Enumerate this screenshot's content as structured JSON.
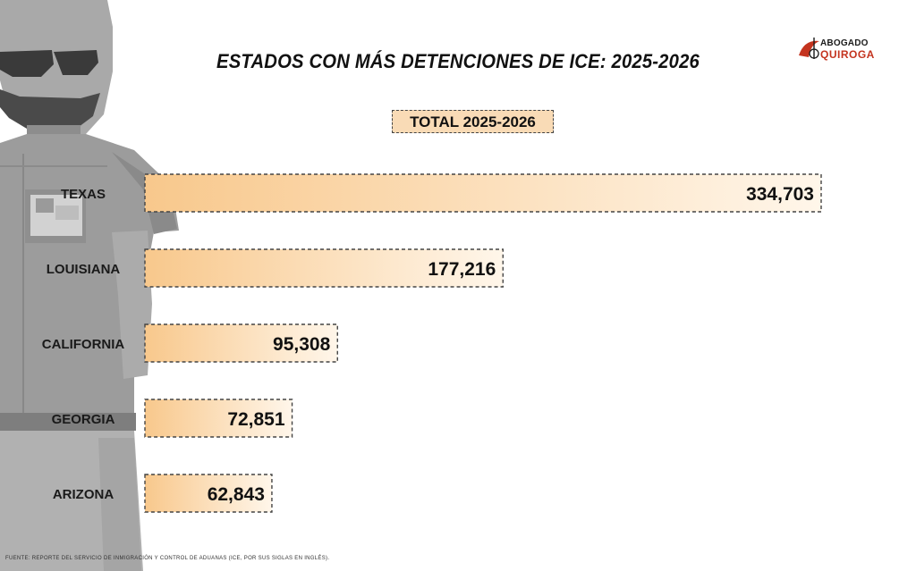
{
  "header": {
    "title": "ESTADOS CON MÁS DETENCIONES DE ICE: 2025-2026",
    "subtitle": "TOTAL 2025-2026"
  },
  "logo": {
    "line1": "ABOGADO",
    "line2": "QUIROGA"
  },
  "source": "FUENTE: REPORTE DEL SERVICIO DE INMIGRACIÓN Y CONTROL DE ADUANAS (ICE, POR SUS SIGLAS EN INGLÉS).",
  "colors": {
    "bar_light": "#fff6ea",
    "bar_dark": "#f8c88c",
    "bar_border": "#444444",
    "accent": "#c4341f"
  },
  "chart_data": {
    "type": "bar",
    "orientation": "horizontal",
    "title": "ESTADOS CON MÁS DETENCIONES DE ICE: 2025-2026",
    "subtitle": "TOTAL 2025-2026",
    "categories": [
      "TEXAS",
      "LOUISIANA",
      "CALIFORNIA",
      "GEORGIA",
      "ARIZONA"
    ],
    "values": [
      334703,
      177216,
      95308,
      72851,
      62843
    ],
    "value_labels": [
      "334,703",
      "177,216",
      "95,308",
      "72,851",
      "62,843"
    ],
    "xlabel": "",
    "ylabel": "",
    "grid": false,
    "legend": "none"
  }
}
